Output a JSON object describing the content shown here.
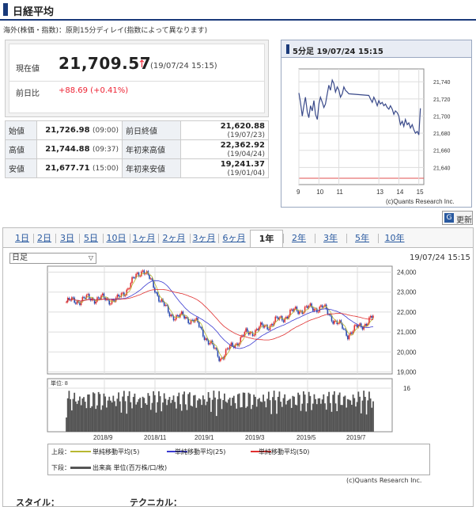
{
  "header": {
    "title": "日経平均"
  },
  "note": "海外(株価・指数)：原則15分ディレイ(指数によって異なります)",
  "price": {
    "current_label": "現在値",
    "current_value": "21,709.57",
    "arrow": "↑",
    "current_time": "(19/07/24 15:15)",
    "diff_label": "前日比",
    "diff_value": "+88.69 (+0.41%)"
  },
  "stats": [
    {
      "k1": "始値",
      "v1": "21,726.98",
      "t1": "(09:00)",
      "k2": "前日終値",
      "v2": "21,620.88",
      "t2": "(19/07/23)"
    },
    {
      "k1": "高値",
      "v1": "21,744.88",
      "t1": "(09:37)",
      "k2": "年初来高値",
      "v2": "22,362.92",
      "t2": "(19/04/24)"
    },
    {
      "k1": "安値",
      "v1": "21,677.71",
      "t1": "(15:00)",
      "k2": "年初来安値",
      "v2": "19,241.37",
      "t2": "(19/01/04)"
    }
  ],
  "mini_chart": {
    "title": "5分足 19/07/24 15:15",
    "credit": "(c)Quants Research Inc."
  },
  "refresh_label": "更新",
  "tabs": [
    "1日",
    "2日",
    "3日",
    "5日",
    "10日",
    "1ヶ月",
    "2ヶ月",
    "3ヶ月",
    "6ヶ月",
    "1年",
    "2年",
    "3年",
    "5年",
    "10年"
  ],
  "active_tab": "1年",
  "period_select": "日足",
  "chart_time": "19/07/24 15:15",
  "legend": {
    "upper_label": "上段：",
    "ma5": "単純移動平均(5)",
    "ma25": "単純移動平均(25)",
    "ma50": "単純移動平均(50)",
    "lower_label": "下段：",
    "volume": "出来高 単位(百万株/口/枚)"
  },
  "main_credit": "(c)Quants Research Inc.",
  "style_label": "スタイル：",
  "technical_label": "テクニカル：",
  "colors": {
    "up": "#e23030",
    "down": "#2a4ab0",
    "ma5": "#b8b832",
    "ma25": "#3a3ad0",
    "ma50": "#e03030",
    "volume": "#555555",
    "line": "#3a4a8a"
  },
  "chart_data": [
    {
      "type": "line",
      "title": "5分足 19/07/24 15:15",
      "x_ticks": [
        "9",
        "10",
        "11",
        "13",
        "14",
        "15"
      ],
      "y_ticks": [
        21640,
        21660,
        21680,
        21700,
        21720,
        21740
      ],
      "ylim": [
        21620,
        21755
      ],
      "xlim": [
        9,
        15.25
      ],
      "y_ticks_labels": [
        "21,640",
        "21,660",
        "21,680",
        "21,700",
        "21,720",
        "21,740"
      ],
      "x": [
        9.0,
        9.08,
        9.17,
        9.25,
        9.33,
        9.42,
        9.5,
        9.58,
        9.67,
        9.75,
        9.83,
        9.92,
        10.0,
        10.08,
        10.17,
        10.25,
        10.33,
        10.42,
        10.5,
        10.58,
        10.67,
        10.75,
        10.83,
        10.92,
        11.0,
        11.08,
        11.17,
        11.25,
        11.33,
        11.42,
        11.5,
        12.5,
        12.58,
        12.67,
        12.75,
        12.83,
        12.92,
        13.0,
        13.08,
        13.17,
        13.25,
        13.33,
        13.42,
        13.5,
        13.58,
        13.67,
        13.75,
        13.83,
        13.92,
        14.0,
        14.08,
        14.17,
        14.25,
        14.33,
        14.42,
        14.5,
        14.58,
        14.67,
        14.75,
        14.83,
        14.92,
        15.0,
        15.08
      ],
      "y": [
        21727,
        21716,
        21700,
        21712,
        21722,
        21705,
        21698,
        21712,
        21706,
        21718,
        21702,
        21696,
        21714,
        21722,
        21716,
        21710,
        21714,
        21726,
        21736,
        21730,
        21742,
        21738,
        21728,
        21734,
        21730,
        21722,
        21726,
        21734,
        21730,
        21728,
        21726,
        21724,
        21720,
        21716,
        21722,
        21718,
        21712,
        21718,
        21714,
        21716,
        21712,
        21714,
        21710,
        21708,
        21712,
        21708,
        21702,
        21706,
        21704,
        21700,
        21690,
        21694,
        21688,
        21696,
        21690,
        21692,
        21686,
        21690,
        21684,
        21680,
        21682,
        21678,
        21709
      ]
    },
    {
      "type": "line",
      "title": "",
      "x_ticks": [
        "2018/9",
        "2018/11",
        "2019/1",
        "2019/3",
        "2019/5",
        "2019/7"
      ],
      "y_ticks": [
        19000,
        20000,
        21000,
        22000,
        23000,
        24000
      ],
      "y_ticks_labels": [
        "19,000",
        "20,000",
        "21,000",
        "22,000",
        "23,000",
        "24,000"
      ],
      "ylim": [
        18900,
        24300
      ],
      "series": [
        {
          "name": "日足",
          "x": [
            "2018/07",
            "2018/08",
            "2018/09",
            "2018/10",
            "2018/11",
            "2018/12",
            "2019/01",
            "2019/02",
            "2019/03",
            "2019/04",
            "2019/05",
            "2019/06",
            "2019/07"
          ],
          "values": [
            22500,
            22700,
            22600,
            24200,
            21900,
            21600,
            19700,
            20900,
            21400,
            22100,
            22250,
            20900,
            21700
          ]
        }
      ],
      "volume_unit": "8",
      "volume_ytick": "16"
    }
  ]
}
